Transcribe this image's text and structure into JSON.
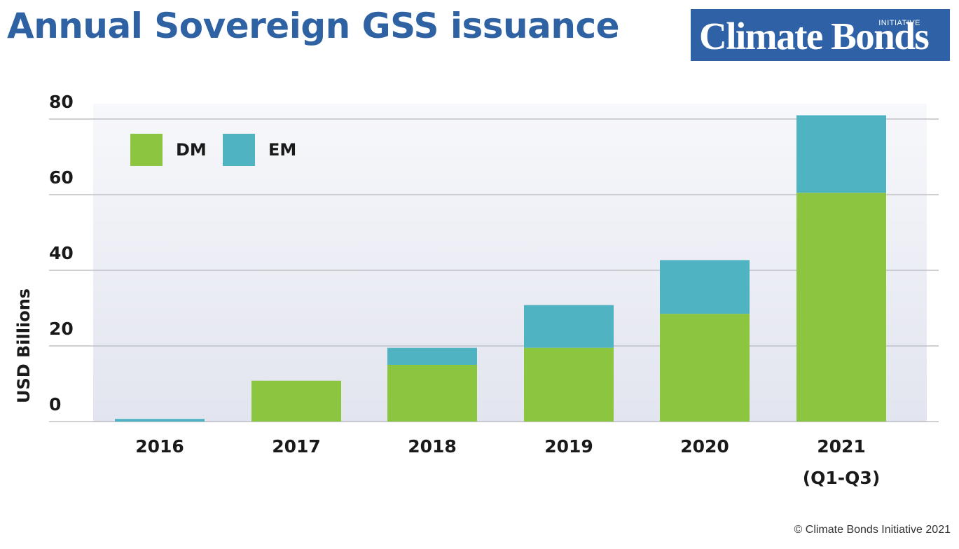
{
  "colors": {
    "title": "#2e62a3",
    "logo_bg": "#2f61a6",
    "dm": "#8cc540",
    "em": "#50b3c1",
    "gridline": "#bfbfc6"
  },
  "logo": {
    "main": "Climate Bonds",
    "sub": "INITIATIVE"
  },
  "footer": "© Climate Bonds Initiative 2021",
  "chart_data": {
    "type": "bar",
    "stacked": true,
    "title": "Annual Sovereign GSS issuance",
    "ylabel": "USD Billions",
    "xlabel": "",
    "ylim": [
      0,
      80
    ],
    "yticks": [
      0,
      20,
      40,
      60,
      80
    ],
    "grid": true,
    "legend_position": "top-left",
    "categories": [
      [
        "2016"
      ],
      [
        "2017"
      ],
      [
        "2018"
      ],
      [
        "2019"
      ],
      [
        "2020"
      ],
      [
        "2021",
        "(Q1-Q3)"
      ]
    ],
    "series": [
      {
        "name": "DM",
        "color": "#8cc540",
        "values": [
          0,
          10.8,
          15,
          19.5,
          28.5,
          60.5
        ]
      },
      {
        "name": "EM",
        "color": "#50b3c1",
        "values": [
          0.7,
          0,
          4.5,
          11.3,
          14.2,
          20.5
        ]
      }
    ]
  }
}
